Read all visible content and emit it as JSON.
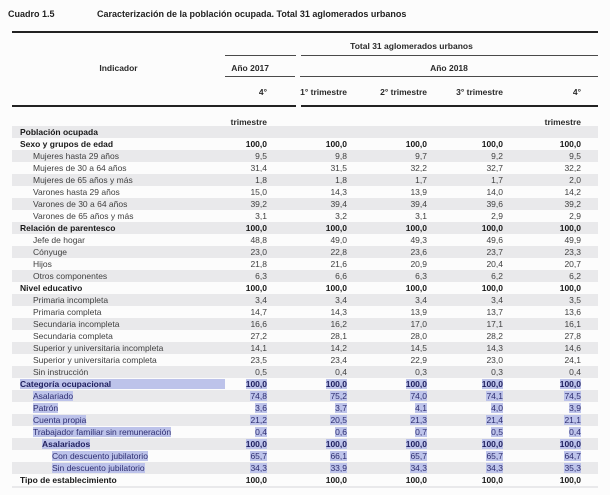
{
  "title": {
    "label": "Cuadro 1.5",
    "text": "Caracterización de la población ocupada. Total 31 aglomerados urbanos"
  },
  "colors": {
    "selection_highlight": "#bdc3ea",
    "row_stripe": "#e9e9eb",
    "rule": "#222222"
  },
  "table": {
    "header": {
      "indicator": "Indicador",
      "group": "Total 31 aglomerados urbanos",
      "year1": "Año 2017",
      "year2": "Año 2018",
      "quarters": [
        "4° trimestre",
        "1° trimestre",
        "2° trimestre",
        "3° trimestre",
        "4° trimestre"
      ]
    },
    "rows": [
      {
        "label": "Población ocupada",
        "level": 0,
        "bold": true,
        "hl": false,
        "values": []
      },
      {
        "label": "Sexo y grupos de edad",
        "level": 0,
        "bold": true,
        "hl": false,
        "values": [
          "100,0",
          "100,0",
          "100,0",
          "100,0",
          "100,0"
        ]
      },
      {
        "label": "Mujeres hasta 29 años",
        "level": 1,
        "bold": false,
        "hl": false,
        "values": [
          "9,5",
          "9,8",
          "9,7",
          "9,2",
          "9,5"
        ]
      },
      {
        "label": "Mujeres de 30 a 64 años",
        "level": 1,
        "bold": false,
        "hl": false,
        "values": [
          "31,4",
          "31,5",
          "32,2",
          "32,7",
          "32,2"
        ]
      },
      {
        "label": "Mujeres de 65 años y más",
        "level": 1,
        "bold": false,
        "hl": false,
        "values": [
          "1,8",
          "1,8",
          "1,7",
          "1,7",
          "2,0"
        ]
      },
      {
        "label": "Varones hasta 29 años",
        "level": 1,
        "bold": false,
        "hl": false,
        "values": [
          "15,0",
          "14,3",
          "13,9",
          "14,0",
          "14,2"
        ]
      },
      {
        "label": "Varones de 30 a 64 años",
        "level": 1,
        "bold": false,
        "hl": false,
        "values": [
          "39,2",
          "39,4",
          "39,4",
          "39,6",
          "39,2"
        ]
      },
      {
        "label": "Varones de 65 años y más",
        "level": 1,
        "bold": false,
        "hl": false,
        "values": [
          "3,1",
          "3,2",
          "3,1",
          "2,9",
          "2,9"
        ]
      },
      {
        "label": "Relación de parentesco",
        "level": 0,
        "bold": true,
        "hl": false,
        "values": [
          "100,0",
          "100,0",
          "100,0",
          "100,0",
          "100,0"
        ]
      },
      {
        "label": "Jefe de hogar",
        "level": 1,
        "bold": false,
        "hl": false,
        "values": [
          "48,8",
          "49,0",
          "49,3",
          "49,6",
          "49,9"
        ]
      },
      {
        "label": "Cónyuge",
        "level": 1,
        "bold": false,
        "hl": false,
        "values": [
          "23,0",
          "22,8",
          "23,6",
          "23,7",
          "23,3"
        ]
      },
      {
        "label": "Hijos",
        "level": 1,
        "bold": false,
        "hl": false,
        "values": [
          "21,8",
          "21,6",
          "20,9",
          "20,4",
          "20,7"
        ]
      },
      {
        "label": "Otros componentes",
        "level": 1,
        "bold": false,
        "hl": false,
        "values": [
          "6,3",
          "6,6",
          "6,3",
          "6,2",
          "6,2"
        ]
      },
      {
        "label": "Nivel educativo",
        "level": 0,
        "bold": true,
        "hl": false,
        "values": [
          "100,0",
          "100,0",
          "100,0",
          "100,0",
          "100,0"
        ]
      },
      {
        "label": "Primaria incompleta",
        "level": 1,
        "bold": false,
        "hl": false,
        "values": [
          "3,4",
          "3,4",
          "3,4",
          "3,4",
          "3,5"
        ]
      },
      {
        "label": "Primaria completa",
        "level": 1,
        "bold": false,
        "hl": false,
        "values": [
          "14,7",
          "14,3",
          "13,9",
          "13,7",
          "13,6"
        ]
      },
      {
        "label": "Secundaria incompleta",
        "level": 1,
        "bold": false,
        "hl": false,
        "values": [
          "16,6",
          "16,2",
          "17,0",
          "17,1",
          "16,1"
        ]
      },
      {
        "label": "Secundaria completa",
        "level": 1,
        "bold": false,
        "hl": false,
        "values": [
          "27,2",
          "28,1",
          "28,0",
          "28,2",
          "27,8"
        ]
      },
      {
        "label": "Superior y universitaria incompleta",
        "level": 1,
        "bold": false,
        "hl": false,
        "values": [
          "14,1",
          "14,2",
          "14,5",
          "14,3",
          "14,6"
        ]
      },
      {
        "label": "Superior y universitaria completa",
        "level": 1,
        "bold": false,
        "hl": false,
        "values": [
          "23,5",
          "23,4",
          "22,9",
          "23,0",
          "24,1"
        ]
      },
      {
        "label": "Sin instrucción",
        "level": 1,
        "bold": false,
        "hl": false,
        "values": [
          "0,5",
          "0,4",
          "0,3",
          "0,3",
          "0,4"
        ]
      },
      {
        "label": "Categoría ocupacional",
        "level": 0,
        "bold": true,
        "hl": true,
        "hl_wide": true,
        "values": [
          "100,0",
          "100,0",
          "100,0",
          "100,0",
          "100,0"
        ]
      },
      {
        "label": "Asalariado",
        "level": 1,
        "bold": false,
        "hl": true,
        "values": [
          "74,8",
          "75,2",
          "74,0",
          "74,1",
          "74,5"
        ]
      },
      {
        "label": "Patrón",
        "level": 1,
        "bold": false,
        "hl": true,
        "values": [
          "3,6",
          "3,7",
          "4,1",
          "4,0",
          "3,9"
        ]
      },
      {
        "label": "Cuenta propia",
        "level": 1,
        "bold": false,
        "hl": true,
        "values": [
          "21,2",
          "20,5",
          "21,3",
          "21,4",
          "21,1"
        ]
      },
      {
        "label": "Trabajador familiar sin remuneración",
        "level": 1,
        "bold": false,
        "hl": true,
        "values": [
          "0,4",
          "0,6",
          "0,7",
          "0,5",
          "0,4"
        ]
      },
      {
        "label": "Asalariados",
        "level": 2,
        "bold": true,
        "hl": true,
        "values": [
          "100,0",
          "100,0",
          "100,0",
          "100,0",
          "100,0"
        ]
      },
      {
        "label": "Con descuento jubilatorio",
        "level": 3,
        "bold": false,
        "hl": true,
        "values": [
          "65,7",
          "66,1",
          "65,7",
          "65,7",
          "64,7"
        ]
      },
      {
        "label": "Sin descuento jubilatorio",
        "level": 3,
        "bold": false,
        "hl": true,
        "values": [
          "34,3",
          "33,9",
          "34,3",
          "34,3",
          "35,3"
        ]
      },
      {
        "label": "Tipo de establecimiento",
        "level": 0,
        "bold": true,
        "hl": false,
        "values": [
          "100,0",
          "100,0",
          "100,0",
          "100,0",
          "100,0"
        ]
      }
    ]
  }
}
